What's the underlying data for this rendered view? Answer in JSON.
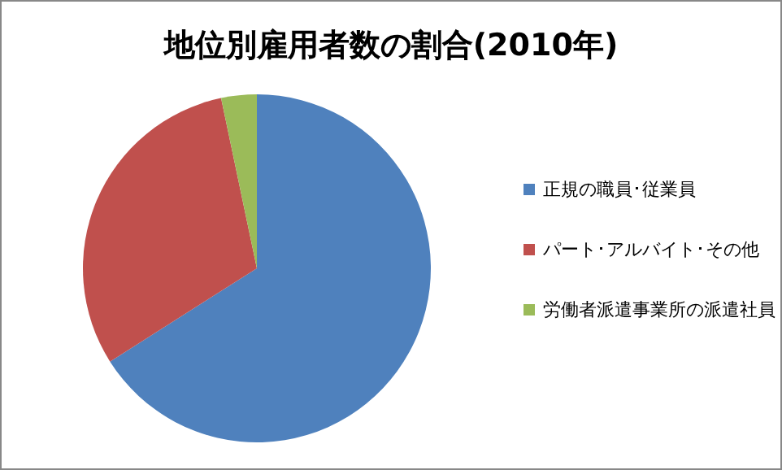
{
  "chart_data": {
    "type": "pie",
    "title": "地位別雇用者数の割合(2010年)",
    "categories": [
      "正規の職員･従業員",
      "パート･アルバイト･その他",
      "労働者派遣事業所の派遣社員"
    ],
    "values": [
      66.0,
      30.7,
      3.3
    ],
    "colors": [
      "#4f81bd",
      "#c0504d",
      "#9bbb59"
    ],
    "legend": "right"
  }
}
